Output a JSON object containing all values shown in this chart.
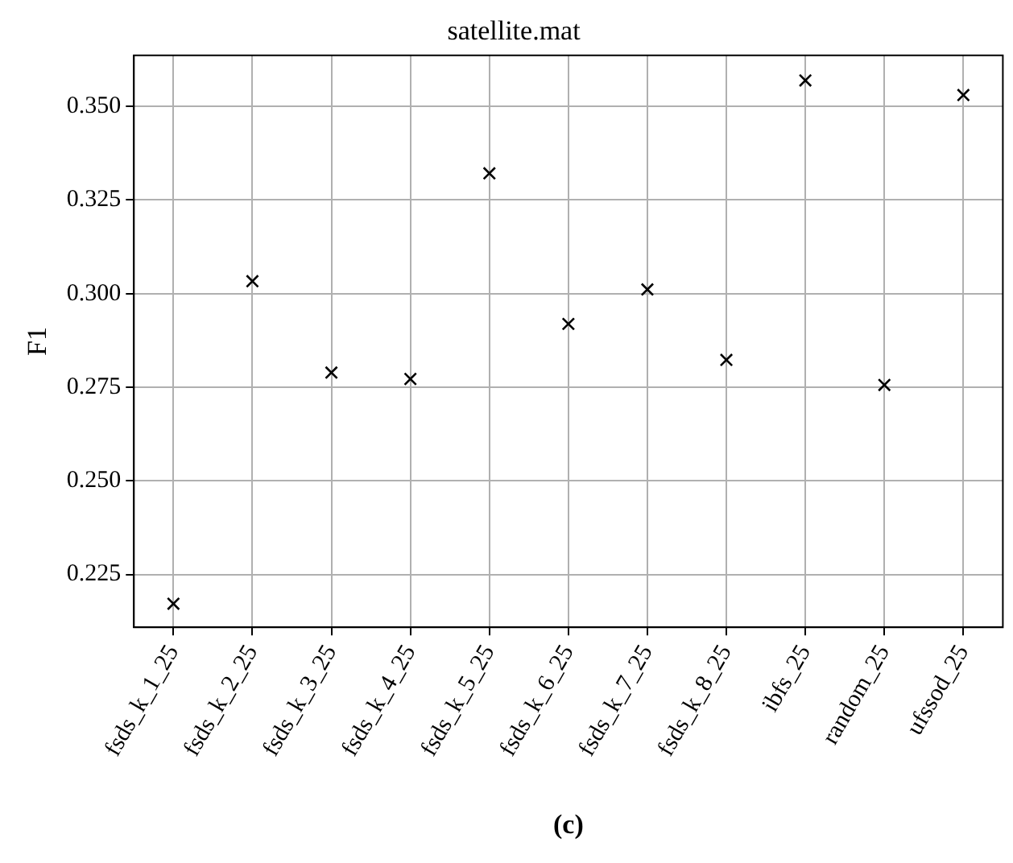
{
  "chart_data": {
    "type": "scatter",
    "title": "satellite.mat",
    "ylabel": "F1",
    "categories": [
      "fsds_k_1_25",
      "fsds_k_2_25",
      "fsds_k_3_25",
      "fsds_k_4_25",
      "fsds_k_5_25",
      "fsds_k_6_25",
      "fsds_k_7_25",
      "fsds_k_8_25",
      "ibfs_25",
      "random_25",
      "ufssod_25"
    ],
    "series": [
      {
        "color": "#000000",
        "values": [
          0.2172,
          0.3033,
          0.2789,
          0.2772,
          0.3321,
          0.2919,
          0.3011,
          0.2823,
          0.3569,
          0.2756,
          0.353
        ]
      }
    ],
    "ylim": [
      0.2109,
      0.3636
    ],
    "yticks": [
      {
        "value": 0.225,
        "label": "0.225"
      },
      {
        "value": 0.25,
        "label": "0.250"
      },
      {
        "value": 0.275,
        "label": "0.275"
      },
      {
        "value": 0.3,
        "label": "0.300"
      },
      {
        "value": 0.325,
        "label": "0.325"
      },
      {
        "value": 0.35,
        "label": "0.350"
      }
    ],
    "grid": true,
    "marker": "cross",
    "legend": false,
    "annotations": [
      "(c)"
    ]
  }
}
